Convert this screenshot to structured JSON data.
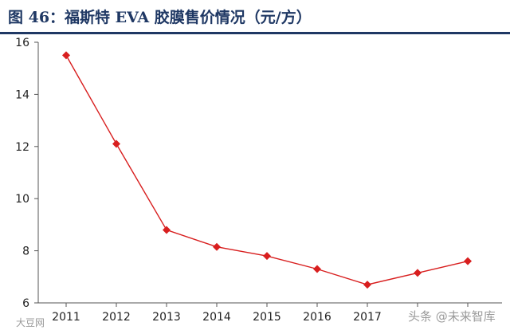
{
  "title": "图 46：福斯特 EVA 胶膜售价情况（元/方）",
  "watermark": {
    "left": "大豆网",
    "right": "头条 @未来智库"
  },
  "colors": {
    "title": "#1f3864",
    "series": "#d81e1e",
    "axis": "#555555"
  },
  "chart_data": {
    "type": "line",
    "title": "图 46：福斯特 EVA 胶膜售价情况（元/方）",
    "xlabel": "",
    "ylabel": "",
    "categories": [
      "2011",
      "2012",
      "2013",
      "2014",
      "2015",
      "2016",
      "2017",
      "",
      ""
    ],
    "series": [
      {
        "values": [
          15.5,
          12.1,
          8.8,
          8.15,
          7.8,
          7.3,
          6.7,
          7.15,
          7.6
        ],
        "marker": "diamond",
        "color": "#d81e1e"
      }
    ],
    "yticks": [
      6,
      8,
      10,
      12,
      14,
      16
    ],
    "ylim": [
      6,
      16
    ],
    "grid": false,
    "legend": "none"
  }
}
